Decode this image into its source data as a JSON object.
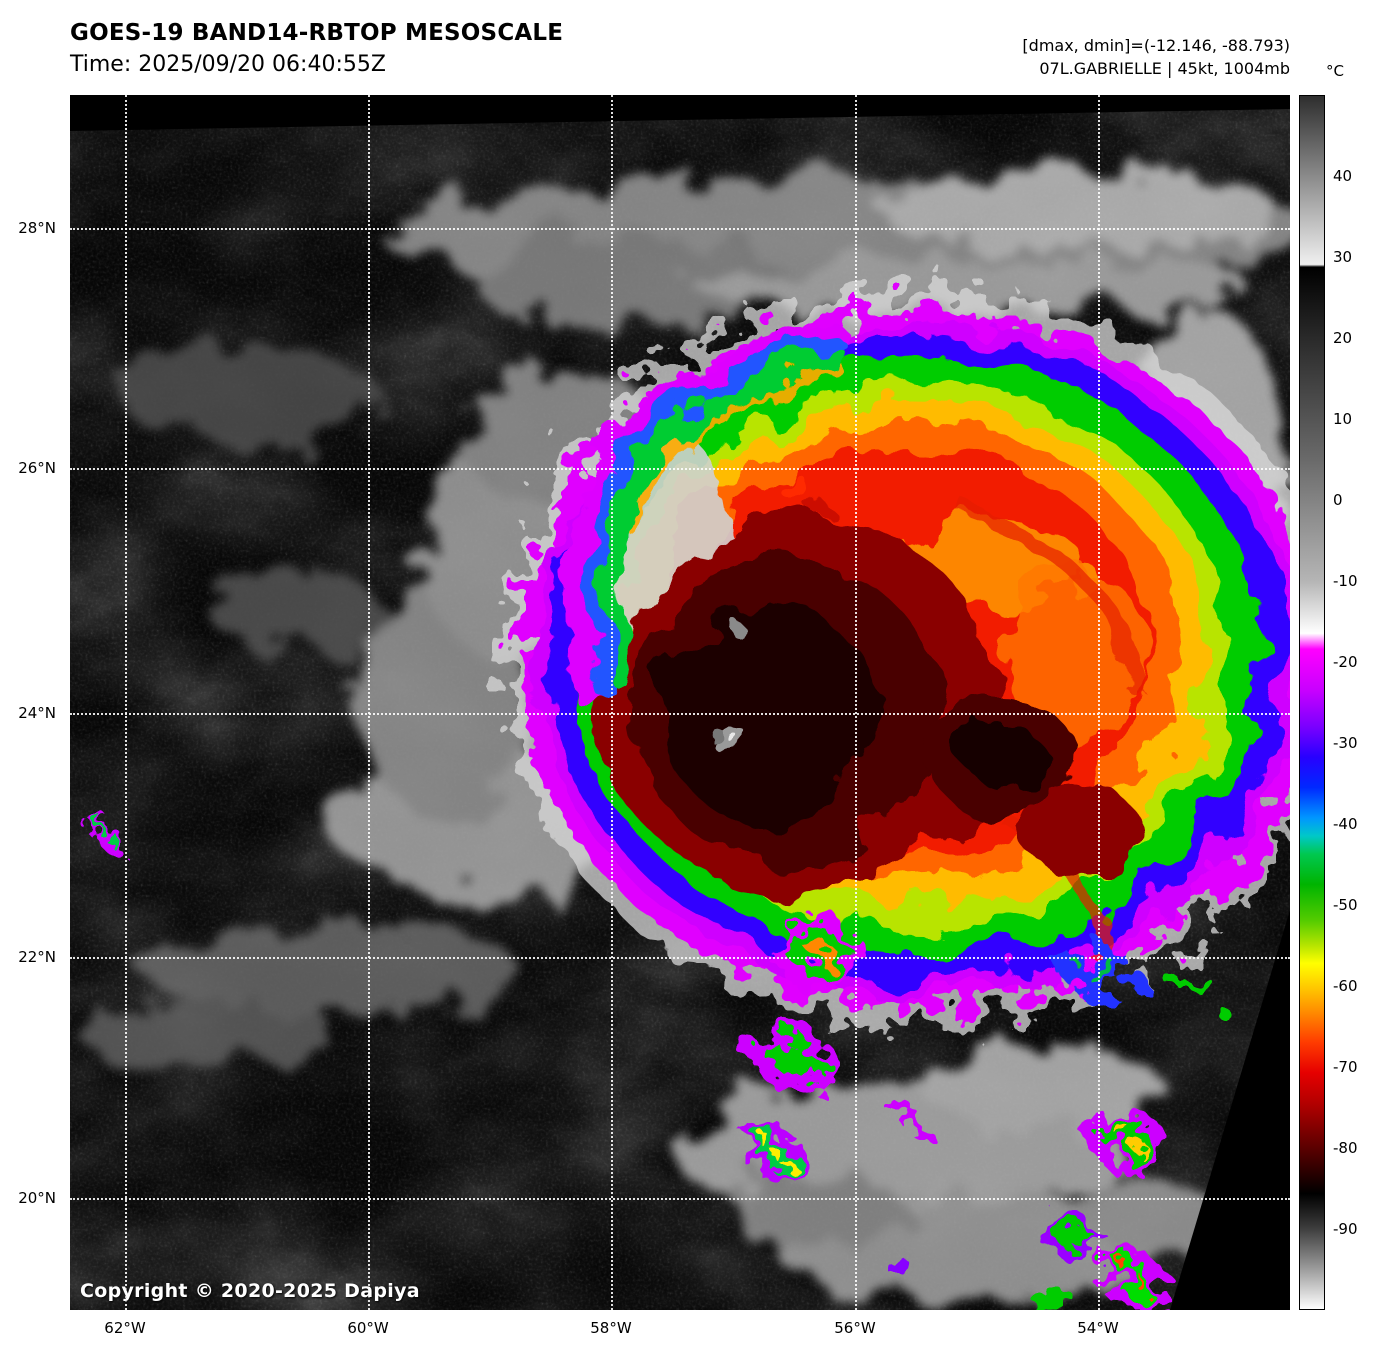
{
  "header": {
    "title": "GOES-19 BAND14-RBTOP MESOSCALE",
    "time_line": "Time: 2025/09/20 06:40:55Z",
    "range_line": "[dmax, dmin]=(-12.146, -88.793)",
    "storm_line": "07L.GABRIELLE | 45kt, 1004mb"
  },
  "colorbar": {
    "unit_label": "°C",
    "ticks": [
      {
        "label": "40",
        "pct": 6.67
      },
      {
        "label": "30",
        "pct": 13.33
      },
      {
        "label": "20",
        "pct": 20.0
      },
      {
        "label": "10",
        "pct": 26.67
      },
      {
        "label": "0",
        "pct": 33.33
      },
      {
        "label": "-10",
        "pct": 40.0
      },
      {
        "label": "-20",
        "pct": 46.67
      },
      {
        "label": "-30",
        "pct": 53.33
      },
      {
        "label": "-40",
        "pct": 60.0
      },
      {
        "label": "-50",
        "pct": 66.67
      },
      {
        "label": "-60",
        "pct": 73.33
      },
      {
        "label": "-70",
        "pct": 80.0
      },
      {
        "label": "-80",
        "pct": 86.67
      },
      {
        "label": "-90",
        "pct": 93.33
      }
    ]
  },
  "axes": {
    "lat": [
      {
        "label": "28°N",
        "pct": 10.95
      },
      {
        "label": "26°N",
        "pct": 30.7
      },
      {
        "label": "24°N",
        "pct": 50.86
      },
      {
        "label": "22°N",
        "pct": 70.95
      },
      {
        "label": "20°N",
        "pct": 90.78
      }
    ],
    "lon": [
      {
        "label": "62°W",
        "pct": 4.51
      },
      {
        "label": "60°W",
        "pct": 24.43
      },
      {
        "label": "58°W",
        "pct": 44.34
      },
      {
        "label": "56°W",
        "pct": 64.34
      },
      {
        "label": "54°W",
        "pct": 84.26
      }
    ]
  },
  "map": {
    "copyright": "Copyright © 2020-2025 Dapiya"
  }
}
